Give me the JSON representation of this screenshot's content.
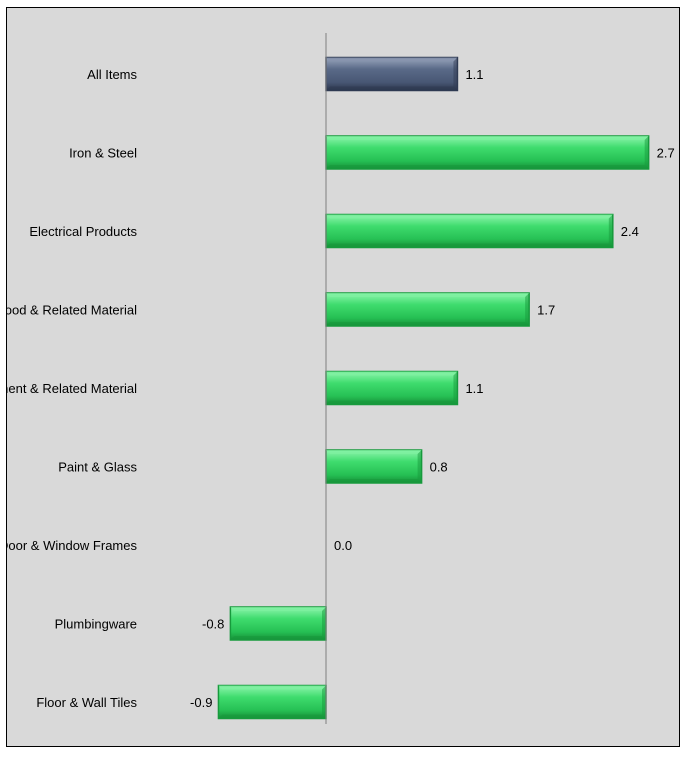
{
  "chart_data": {
    "type": "bar",
    "orientation": "horizontal",
    "categories": [
      "All Items",
      "Iron & Steel",
      "Electrical Products",
      "Wood & Related Material",
      "Cement & Related Material",
      "Paint & Glass",
      "Door & Window Frames",
      "Plumbingware",
      "Floor & Wall Tiles"
    ],
    "values": [
      1.1,
      2.7,
      2.4,
      1.7,
      1.1,
      0.8,
      0.0,
      -0.8,
      -0.9
    ],
    "value_labels": [
      "1.1",
      "2.7",
      "2.4",
      "1.7",
      "1.1",
      "0.8",
      "0.0",
      "-0.8",
      "-0.9"
    ],
    "xlim": [
      -0.93,
      2.7
    ],
    "grid": false,
    "colors": {
      "highlight": "#4a5a78",
      "highlight_light": "#8794ad",
      "highlight_dark": "#2f3a52",
      "bar": "#2ecc5e",
      "bar_light": "#7ff0a0",
      "bar_dark": "#179a3c",
      "plot_background": "#d9d9d9",
      "axis": "#7f7f7f"
    }
  }
}
